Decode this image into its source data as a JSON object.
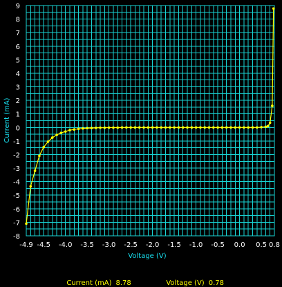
{
  "chart_data": {
    "type": "line",
    "xlabel": "Voltage (V)",
    "ylabel": "Current (mA)",
    "xlim": [
      -4.9,
      0.8
    ],
    "ylim": [
      -8,
      9
    ],
    "grid": true,
    "x_ticks": [
      -4.9,
      -4.5,
      -4.0,
      -3.5,
      -3.0,
      -2.5,
      -2.0,
      -1.5,
      -1.0,
      -0.5,
      0.0,
      0.5,
      0.8
    ],
    "x_tick_labels": [
      "-4.9",
      "-4.5",
      "-4.0",
      "-3.5",
      "-3.0",
      "-2.5",
      "-2.0",
      "-1.5",
      "-1.0",
      "-0.5",
      "0.0",
      "0.5",
      "0.8"
    ],
    "y_ticks": [
      -8,
      -7,
      -6,
      -5,
      -4,
      -3,
      -2,
      -1,
      0,
      1,
      2,
      3,
      4,
      5,
      6,
      7,
      8,
      9
    ],
    "colors": {
      "background": "#000000",
      "grid": "#19d3d3",
      "axis_label": "#18e0f0",
      "series": "#ffff00",
      "tick_text": "#ffffff"
    },
    "series": [
      {
        "x": [
          -4.9,
          -4.8,
          -4.7,
          -4.6,
          -4.5,
          -4.4,
          -4.3,
          -4.2,
          -4.1,
          -4.0,
          -3.9,
          -3.8,
          -3.7,
          -3.6,
          -3.5,
          -3.4,
          -3.3,
          -3.2,
          -3.1,
          -3.0,
          -2.9,
          -2.8,
          -2.7,
          -2.6,
          -2.5,
          -2.4,
          -2.3,
          -2.2,
          -2.1,
          -2.0,
          -1.9,
          -1.8,
          -1.7,
          -1.6,
          -1.5,
          -1.4,
          -1.3,
          -1.2,
          -1.1,
          -1.0,
          -0.9,
          -0.8,
          -0.7,
          -0.6,
          -0.5,
          -0.4,
          -0.3,
          -0.2,
          -0.1,
          0.0,
          0.1,
          0.2,
          0.3,
          0.4,
          0.5,
          0.6,
          0.65,
          0.7,
          0.75,
          0.78
        ],
        "y": [
          -7.1,
          -4.35,
          -3.2,
          -2.1,
          -1.45,
          -1.05,
          -0.75,
          -0.55,
          -0.4,
          -0.3,
          -0.2,
          -0.15,
          -0.1,
          -0.07,
          -0.05,
          -0.04,
          -0.03,
          -0.02,
          -0.02,
          -0.01,
          -0.01,
          -0.01,
          0,
          0,
          0,
          0,
          0,
          0,
          0,
          0,
          0,
          0,
          0,
          0,
          0,
          0,
          0,
          0,
          0,
          0,
          0,
          0,
          0,
          0,
          0,
          0,
          0,
          0,
          0,
          0,
          0,
          0,
          0,
          0,
          0.02,
          0.05,
          0.1,
          0.35,
          1.6,
          8.78
        ]
      }
    ]
  },
  "readout": {
    "current_label": "Current (mA)",
    "current_value": "8.78",
    "voltage_label": "Voltage (V)",
    "voltage_value": "0.78"
  }
}
